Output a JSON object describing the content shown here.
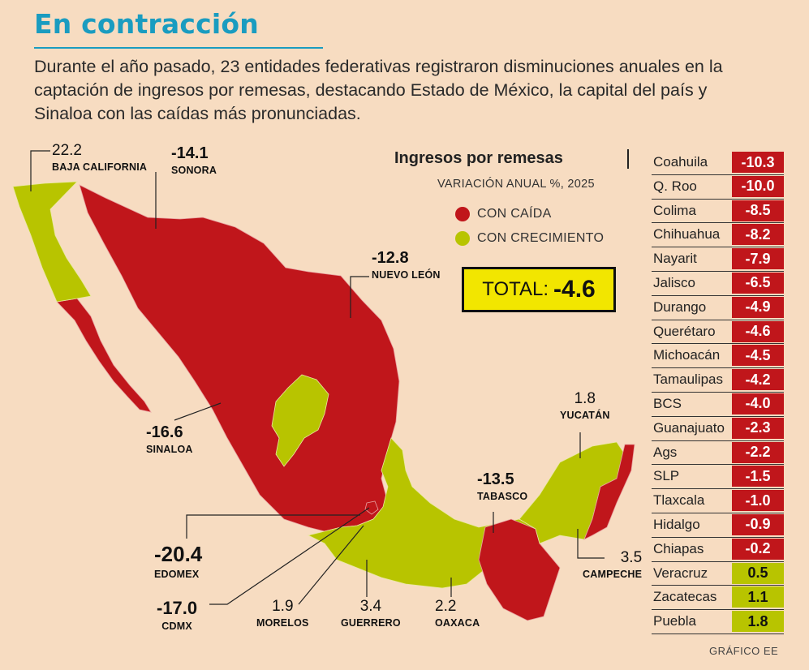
{
  "title": "En contracción",
  "subtitle": "Durante el año pasado, 23 entidades federativas registraron disminuciones anuales en la captación de ingresos por remesas, destacando Estado de México, la capital del país y Sinaloa con las caídas más pronunciadas.",
  "legend": {
    "title": "Ingresos por remesas",
    "subtitle": "VARIACIÓN ANUAL %, 2025",
    "items": [
      {
        "label": "CON CAÍDA",
        "color": "#c0161b"
      },
      {
        "label": "CON CRECIMIENTO",
        "color": "#b8c400"
      }
    ]
  },
  "total": {
    "label": "TOTAL:",
    "value": "-4.6"
  },
  "map_labels": {
    "baja_california": {
      "value": "22.2",
      "name": "BAJA CALIFORNIA"
    },
    "sonora": {
      "value": "-14.1",
      "name": "SONORA"
    },
    "nuevo_leon": {
      "value": "-12.8",
      "name": "NUEVO LEÓN"
    },
    "sinaloa": {
      "value": "-16.6",
      "name": "SINALOA"
    },
    "edomex": {
      "value": "-20.4",
      "name": "EDOMEX"
    },
    "cdmx": {
      "value": "-17.0",
      "name": "CDMX"
    },
    "morelos": {
      "value": "1.9",
      "name": "MORELOS"
    },
    "guerrero": {
      "value": "3.4",
      "name": "GUERRERO"
    },
    "oaxaca": {
      "value": "2.2",
      "name": "OAXACA"
    },
    "tabasco": {
      "value": "-13.5",
      "name": "TABASCO"
    },
    "yucatan": {
      "value": "1.8",
      "name": "YUCATÁN"
    },
    "campeche": {
      "value": "3.5",
      "name": "CAMPECHE"
    }
  },
  "table": [
    {
      "name": "Coahuila",
      "value": "-10.3"
    },
    {
      "name": "Q. Roo",
      "value": "-10.0"
    },
    {
      "name": "Colima",
      "value": "-8.5"
    },
    {
      "name": "Chihuahua",
      "value": "-8.2"
    },
    {
      "name": "Nayarit",
      "value": "-7.9"
    },
    {
      "name": "Jalisco",
      "value": "-6.5"
    },
    {
      "name": "Durango",
      "value": "-4.9"
    },
    {
      "name": "Querétaro",
      "value": "-4.6"
    },
    {
      "name": "Michoacán",
      "value": "-4.5"
    },
    {
      "name": "Tamaulipas",
      "value": "-4.2"
    },
    {
      "name": "BCS",
      "value": "-4.0"
    },
    {
      "name": "Guanajuato",
      "value": "-2.3"
    },
    {
      "name": "Ags",
      "value": "-2.2"
    },
    {
      "name": "SLP",
      "value": "-1.5"
    },
    {
      "name": "Tlaxcala",
      "value": "-1.0"
    },
    {
      "name": "Hidalgo",
      "value": "-0.9"
    },
    {
      "name": "Chiapas",
      "value": "-0.2"
    },
    {
      "name": "Veracruz",
      "value": "0.5"
    },
    {
      "name": "Zacatecas",
      "value": "1.1"
    },
    {
      "name": "Puebla",
      "value": "1.8"
    }
  ],
  "colors": {
    "decline": "#c0161b",
    "growth": "#b8c400",
    "accent": "#1a9cc0"
  },
  "credit": "GRÁFICO EE"
}
